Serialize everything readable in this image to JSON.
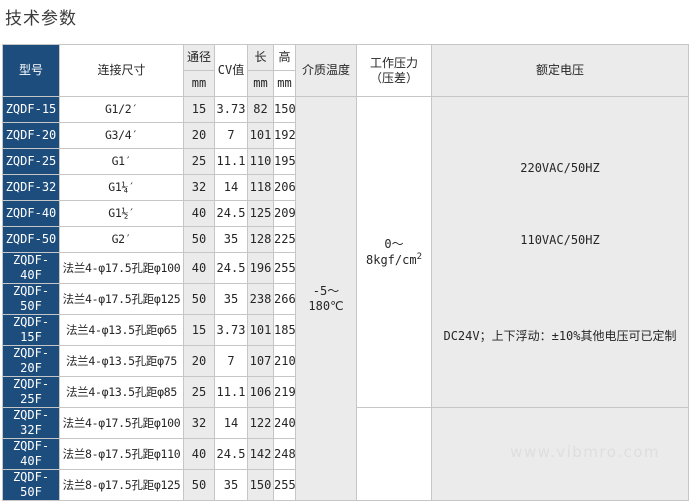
{
  "page": {
    "title": "技术参数",
    "watermark": "www.vibmro.com"
  },
  "colors": {
    "model_column_navy": "#1d4d7d",
    "grey_cell": "#ebebeb",
    "white_cell": "#ffffff",
    "border": "#c6c6c6"
  },
  "table": {
    "headers": {
      "model": "型号",
      "connection": "连接尺寸",
      "diameter": "通径",
      "diameter_unit": "mm",
      "cv": "CV值",
      "length": "长",
      "length_unit": "mm",
      "height": "高",
      "height_unit": "mm",
      "medium_temp": "介质温度",
      "working_pressure_line1": "工作压力",
      "working_pressure_line2": "（压差）",
      "rated_voltage": "额定电压"
    },
    "merged": {
      "medium_temp_value": "-5～180℃",
      "pressure_value": "0～8kgf/cm",
      "pressure_sup": "2",
      "voltage_lines": [
        "220VAC/50HZ",
        "110VAC/50HZ",
        "DC24V；上下浮动：±10%其他电压可已定制"
      ]
    },
    "rows": [
      {
        "model": "ZQDF-15",
        "connection": "G1/2′",
        "diameter": "15",
        "cv": "3.73",
        "length": "82",
        "height": "150"
      },
      {
        "model": "ZQDF-20",
        "connection": "G3/4′",
        "diameter": "20",
        "cv": "7",
        "length": "101",
        "height": "192"
      },
      {
        "model": "ZQDF-25",
        "connection": "G1′",
        "diameter": "25",
        "cv": "11.1",
        "length": "110",
        "height": "195"
      },
      {
        "model": "ZQDF-32",
        "connection": "G1¼′",
        "diameter": "32",
        "cv": "14",
        "length": "118",
        "height": "206"
      },
      {
        "model": "ZQDF-40",
        "connection": "G1½′",
        "diameter": "40",
        "cv": "24.5",
        "length": "125",
        "height": "209"
      },
      {
        "model": "ZQDF-50",
        "connection": "G2′",
        "diameter": "50",
        "cv": "35",
        "length": "128",
        "height": "225"
      },
      {
        "model": "ZQDF-40F",
        "connection": "法兰4-φ17.5孔距φ100",
        "diameter": "40",
        "cv": "24.5",
        "length": "196",
        "height": "255"
      },
      {
        "model": "ZQDF-50F",
        "connection": "法兰4-φ17.5孔距φ125",
        "diameter": "50",
        "cv": "35",
        "length": "238",
        "height": "266"
      },
      {
        "model": "ZQDF-15F",
        "connection": "法兰4-φ13.5孔距φ65",
        "diameter": "15",
        "cv": "3.73",
        "length": "101",
        "height": "185"
      },
      {
        "model": "ZQDF-20F",
        "connection": "法兰4-φ13.5孔距φ75",
        "diameter": "20",
        "cv": "7",
        "length": "107",
        "height": "210"
      },
      {
        "model": "ZQDF-25F",
        "connection": "法兰4-φ13.5孔距φ85",
        "diameter": "25",
        "cv": "11.1",
        "length": "106",
        "height": "219"
      },
      {
        "model": "ZQDF-32F",
        "connection": "法兰4-φ17.5孔距φ100",
        "diameter": "32",
        "cv": "14",
        "length": "122",
        "height": "240"
      },
      {
        "model": "ZQDF-40F",
        "connection": "法兰8-φ17.5孔距φ110",
        "diameter": "40",
        "cv": "24.5",
        "length": "142",
        "height": "248"
      },
      {
        "model": "ZQDF-50F",
        "connection": "法兰8-φ17.5孔距φ125",
        "diameter": "50",
        "cv": "35",
        "length": "150",
        "height": "255"
      }
    ]
  }
}
